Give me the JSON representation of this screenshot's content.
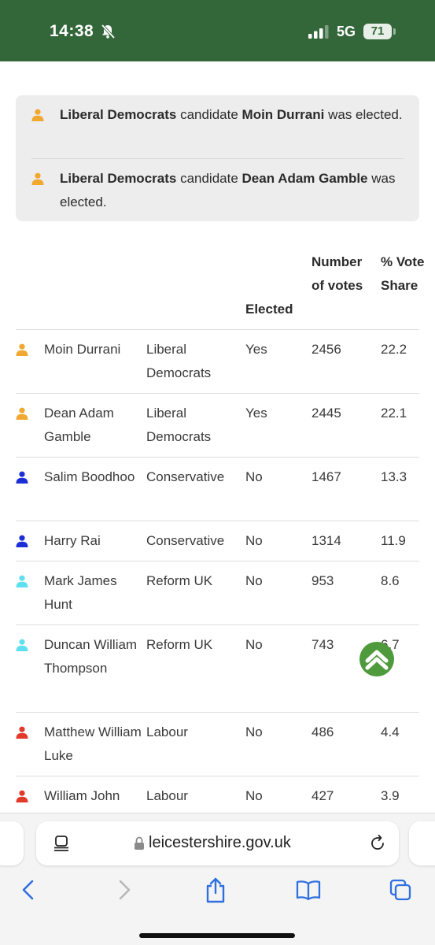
{
  "status_bar": {
    "time": "14:38",
    "network": "5G",
    "battery": "71",
    "background": "#33673a"
  },
  "notices": [
    {
      "party": "Liberal Democrats",
      "mid": " candidate ",
      "candidate": "Moin Durrani",
      "tail": " was elected."
    },
    {
      "party": "Liberal Democrats",
      "mid": " candidate ",
      "candidate": "Dean Adam Gamble",
      "tail": " was elected."
    }
  ],
  "table": {
    "headers": {
      "elected": "Elected",
      "votes": "Number of votes",
      "share": "% Vote Share"
    },
    "rows": [
      {
        "name": "Moin Durrani",
        "party": "Liberal Democrats",
        "elected": "Yes",
        "votes": "2456",
        "share": "22.2",
        "color": "#f0a830"
      },
      {
        "name": "Dean Adam Gamble",
        "party": "Liberal Democrats",
        "elected": "Yes",
        "votes": "2445",
        "share": "22.1",
        "color": "#f0a830"
      },
      {
        "name": "Salim Boodhoo",
        "party": "Conservative",
        "elected": "No",
        "votes": "1467",
        "share": "13.3",
        "color": "#1c2fd6"
      },
      {
        "name": "Harry Rai",
        "party": "Conservative",
        "elected": "No",
        "votes": "1314",
        "share": "11.9",
        "color": "#1c2fd6"
      },
      {
        "name": "Mark James Hunt",
        "party": "Reform UK",
        "elected": "No",
        "votes": "953",
        "share": "8.6",
        "color": "#5fe0f0"
      },
      {
        "name": "Duncan William Thompson",
        "party": "Reform UK",
        "elected": "No",
        "votes": "743",
        "share": "6.7",
        "color": "#5fe0f0"
      },
      {
        "name": "Matthew William Luke",
        "party": "Labour",
        "elected": "No",
        "votes": "486",
        "share": "4.4",
        "color": "#e23a2a"
      },
      {
        "name": "William John",
        "party": "Labour",
        "elected": "No",
        "votes": "427",
        "share": "3.9",
        "color": "#e23a2a"
      }
    ]
  },
  "browser": {
    "url": "leicestershire.gov.uk"
  },
  "icons": [
    "bell-slash-icon",
    "signal-icon",
    "person-icon",
    "chevron-up-icon",
    "reader-icon",
    "lock-icon",
    "reload-icon",
    "back-icon",
    "forward-icon",
    "share-icon",
    "bookmarks-icon",
    "tabs-icon"
  ]
}
